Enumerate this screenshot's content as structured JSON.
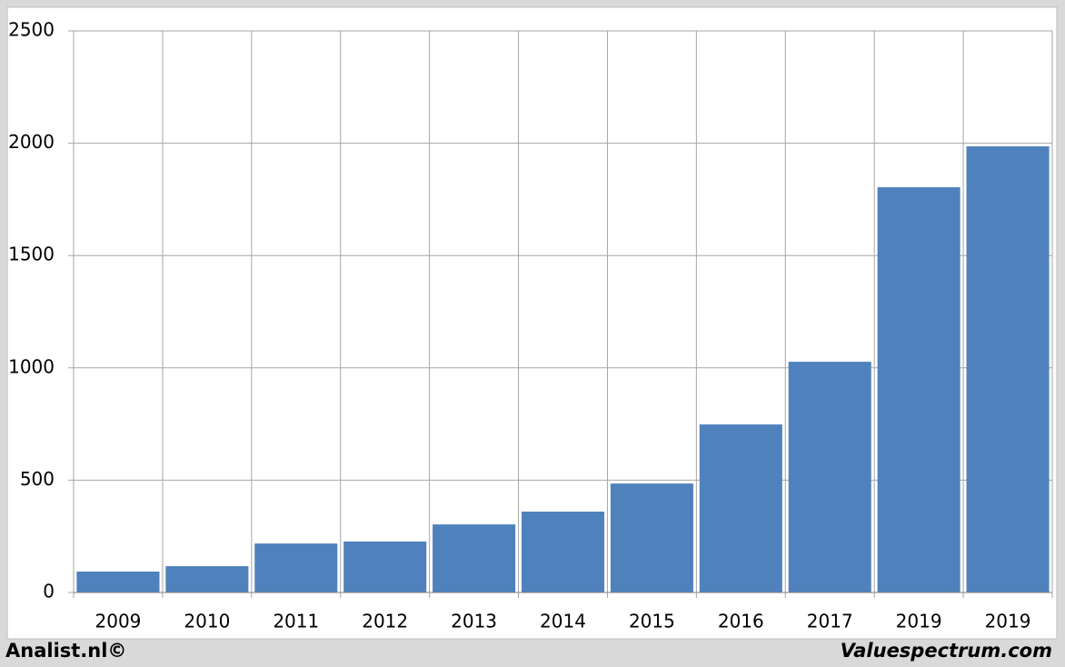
{
  "chart_data": {
    "type": "bar",
    "categories": [
      "2009",
      "2010",
      "2011",
      "2012",
      "2013",
      "2014",
      "2015",
      "2016",
      "2017",
      "2019",
      "2019"
    ],
    "values": [
      93,
      117,
      218,
      227,
      303,
      360,
      485,
      748,
      1027,
      1804,
      1986
    ],
    "color": "#4f81bd",
    "ylim": [
      0,
      2500
    ],
    "yticks": [
      0,
      500,
      1000,
      1500,
      2000,
      2500
    ],
    "grid": true
  },
  "footer": {
    "left": "Analist.nl©",
    "right": "Valuespectrum.com"
  }
}
